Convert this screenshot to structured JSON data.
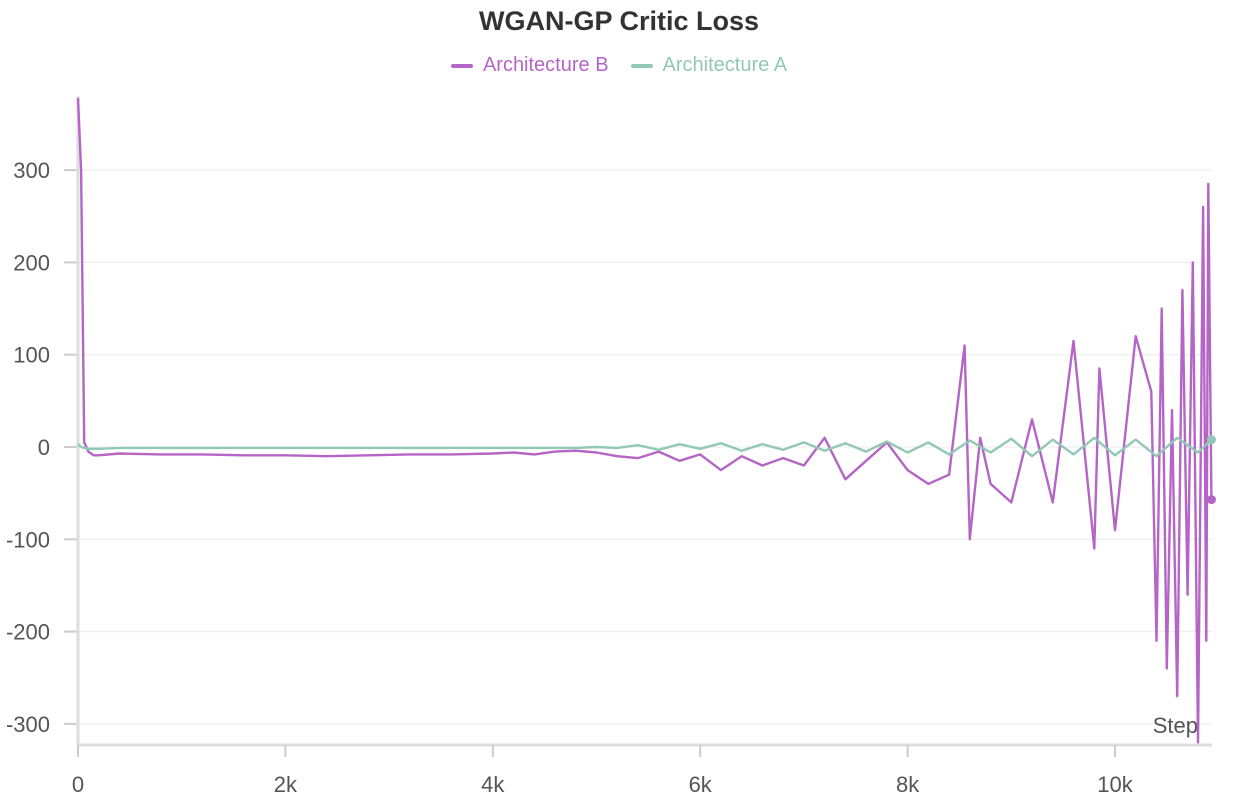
{
  "chart_data": {
    "type": "line",
    "title": "WGAN-GP Critic Loss",
    "xlabel": "Step",
    "ylabel": "",
    "xlim": [
      0,
      10950
    ],
    "ylim": [
      -325,
      378
    ],
    "x_ticks": [
      0,
      2000,
      4000,
      6000,
      8000,
      10000
    ],
    "x_tick_labels": [
      "0",
      "2k",
      "4k",
      "6k",
      "8k",
      "10k"
    ],
    "y_ticks": [
      300,
      200,
      100,
      0,
      -100,
      -200,
      -300
    ],
    "y_tick_labels": [
      "300",
      "200",
      "100",
      "0",
      "-100",
      "-200",
      "-300"
    ],
    "grid": true,
    "legend_position": "top-center",
    "series": [
      {
        "name": "Architecture B",
        "color": "#b565c6",
        "x": [
          0,
          30,
          60,
          100,
          150,
          200,
          400,
          800,
          1200,
          1600,
          2000,
          2400,
          2800,
          3200,
          3600,
          4000,
          4200,
          4400,
          4600,
          4800,
          5000,
          5200,
          5400,
          5600,
          5800,
          6000,
          6200,
          6400,
          6600,
          6800,
          7000,
          7200,
          7400,
          7600,
          7800,
          8000,
          8200,
          8400,
          8550,
          8600,
          8700,
          8800,
          9000,
          9200,
          9400,
          9600,
          9800,
          9850,
          10000,
          10200,
          10350,
          10400,
          10450,
          10500,
          10550,
          10600,
          10650,
          10700,
          10750,
          10800,
          10850,
          10880,
          10900,
          10930
        ],
        "y": [
          378,
          300,
          5,
          -5,
          -9,
          -9,
          -7,
          -8,
          -8,
          -9,
          -9,
          -10,
          -9,
          -8,
          -8,
          -7,
          -6,
          -8,
          -5,
          -4,
          -6,
          -10,
          -12,
          -5,
          -15,
          -8,
          -25,
          -10,
          -20,
          -12,
          -20,
          10,
          -35,
          -15,
          5,
          -25,
          -40,
          -30,
          110,
          -100,
          10,
          -40,
          -60,
          30,
          -60,
          115,
          -110,
          85,
          -90,
          120,
          60,
          -210,
          150,
          -240,
          40,
          -270,
          170,
          -160,
          200,
          -320,
          260,
          -210,
          285,
          -57
        ]
      },
      {
        "name": "Architecture A",
        "color": "#92c8b6",
        "x": [
          0,
          30,
          60,
          100,
          200,
          400,
          800,
          1200,
          1600,
          2000,
          2400,
          2800,
          3200,
          3600,
          4000,
          4400,
          4800,
          5000,
          5200,
          5400,
          5600,
          5800,
          6000,
          6200,
          6400,
          6600,
          6800,
          7000,
          7200,
          7400,
          7600,
          7800,
          8000,
          8200,
          8400,
          8600,
          8800,
          9000,
          9200,
          9400,
          9600,
          9800,
          10000,
          10200,
          10400,
          10600,
          10800,
          10930
        ],
        "y": [
          3,
          0,
          -1,
          -2,
          -2,
          -1,
          -1,
          -1,
          -1,
          -1,
          -1,
          -1,
          -1,
          -1,
          -1,
          -1,
          -1,
          0,
          -1,
          2,
          -3,
          3,
          -2,
          4,
          -4,
          3,
          -3,
          5,
          -4,
          4,
          -5,
          6,
          -6,
          5,
          -8,
          7,
          -6,
          9,
          -10,
          8,
          -8,
          10,
          -9,
          8,
          -10,
          10,
          -6,
          8
        ]
      }
    ]
  }
}
